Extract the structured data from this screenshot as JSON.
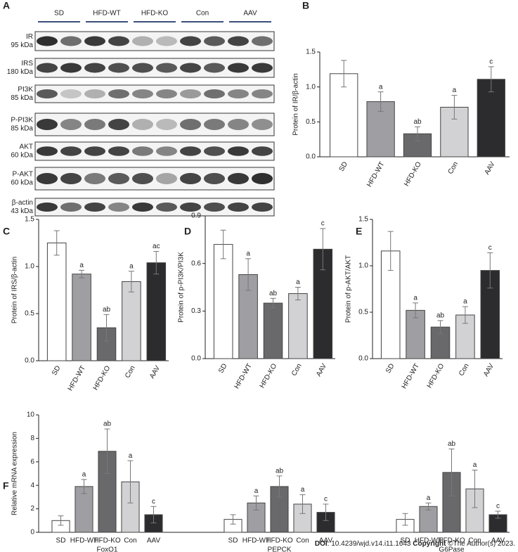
{
  "blot": {
    "label": "A",
    "groups": [
      "SD",
      "HFD-WT",
      "HFD-KO",
      "Con",
      "AAV"
    ],
    "rows": [
      {
        "protein": "IR",
        "size": "95 kDa"
      },
      {
        "protein": "IRS",
        "size": "180 kDa"
      },
      {
        "protein": "PI3K",
        "size": "85 kDa"
      },
      {
        "protein": "P-PI3K",
        "size": "85 kDa"
      },
      {
        "protein": "AKT",
        "size": "60 kDa"
      },
      {
        "protein": "P-AKT",
        "size": "60 kDa"
      },
      {
        "protein": "β-actin",
        "size": "43 kDa"
      }
    ]
  },
  "chart_data": [
    {
      "type": "bar",
      "label": "B",
      "y_label": "Protein of IR/β-actin",
      "categories": [
        "SD",
        "HFD-WT",
        "HFD-KO",
        "Con",
        "AAV"
      ],
      "values": [
        1.19,
        0.79,
        0.33,
        0.71,
        1.11
      ],
      "errors": [
        0.19,
        0.14,
        0.1,
        0.17,
        0.18
      ],
      "annotations": [
        null,
        "a",
        "ab",
        "a",
        "c"
      ],
      "colors": [
        "#ffffff",
        "#9f9fa3",
        "#69696c",
        "#d2d2d4",
        "#2c2c2e"
      ],
      "ylim": [
        0,
        1.5
      ],
      "yticks": [
        {
          "value": 0,
          "label": "0.0"
        },
        {
          "value": 0.5,
          "label": "0.5"
        },
        {
          "value": 1,
          "label": "1.0"
        },
        {
          "value": 1.5,
          "label": "1.5"
        }
      ]
    },
    {
      "type": "bar",
      "label": "C",
      "y_label": "Protein of IRS/β-actin",
      "categories": [
        "SD",
        "HFD-WT",
        "HFD-KO",
        "Con",
        "AAV"
      ],
      "values": [
        1.25,
        0.92,
        0.35,
        0.84,
        1.04
      ],
      "errors": [
        0.13,
        0.04,
        0.14,
        0.11,
        0.12
      ],
      "annotations": [
        null,
        "a",
        "ab",
        "a",
        "ac"
      ],
      "colors": [
        "#ffffff",
        "#9f9fa3",
        "#69696c",
        "#d2d2d4",
        "#2c2c2e"
      ],
      "ylim": [
        0,
        1.5
      ],
      "yticks": [
        {
          "value": 0,
          "label": "0.0"
        },
        {
          "value": 0.5,
          "label": "0.5"
        },
        {
          "value": 1,
          "label": "1.0"
        },
        {
          "value": 1.5,
          "label": "1.5"
        }
      ]
    },
    {
      "type": "bar",
      "label": "D",
      "y_label": "Protein of p-PI3K/PI3K",
      "categories": [
        "SD",
        "HFD-WT",
        "HFD-KO",
        "Con",
        "AAV"
      ],
      "values": [
        0.72,
        0.53,
        0.35,
        0.41,
        0.69
      ],
      "errors": [
        0.09,
        0.1,
        0.03,
        0.04,
        0.13
      ],
      "annotations": [
        null,
        "a",
        "ab",
        "a",
        "c"
      ],
      "colors": [
        "#ffffff",
        "#9f9fa3",
        "#69696c",
        "#d2d2d4",
        "#2c2c2e"
      ],
      "ylim": [
        0,
        0.9
      ],
      "yticks": [
        {
          "value": 0,
          "label": "0.0"
        },
        0.3,
        0.6,
        0.9
      ]
    },
    {
      "type": "bar",
      "label": "E",
      "y_label": "Protein of p-AKT/AKT",
      "categories": [
        "SD",
        "HFD-WT",
        "HFD-KO",
        "Con",
        "AAV"
      ],
      "values": [
        1.16,
        0.52,
        0.34,
        0.47,
        0.95
      ],
      "errors": [
        0.21,
        0.08,
        0.07,
        0.09,
        0.19
      ],
      "annotations": [
        null,
        "a",
        "ab",
        "a",
        "c"
      ],
      "colors": [
        "#ffffff",
        "#9f9fa3",
        "#69696c",
        "#d2d2d4",
        "#2c2c2e"
      ],
      "ylim": [
        0,
        1.5
      ],
      "yticks": [
        {
          "value": 0,
          "label": "0.0"
        },
        {
          "value": 0.5,
          "label": "0.5"
        },
        {
          "value": 1,
          "label": "1.0"
        },
        {
          "value": 1.5,
          "label": "1.5"
        }
      ]
    },
    {
      "type": "grouped_bar",
      "label": "F",
      "y_label": "Relative mRNA expression",
      "categories": [
        "FoxO1",
        "PEPCK",
        "G6Pase"
      ],
      "series": [
        {
          "name": "SD",
          "color": "#ffffff",
          "values": [
            1.0,
            1.1,
            1.1
          ],
          "errors": [
            0.4,
            0.4,
            0.5
          ],
          "annotations": [
            null,
            null,
            null
          ]
        },
        {
          "name": "HFD-WT",
          "color": "#9f9fa3",
          "values": [
            3.9,
            2.5,
            2.2
          ],
          "errors": [
            0.6,
            0.6,
            0.3
          ],
          "annotations": [
            "a",
            "a",
            "a"
          ]
        },
        {
          "name": "HFD-KO",
          "color": "#69696c",
          "values": [
            6.9,
            3.9,
            5.1
          ],
          "errors": [
            1.9,
            0.9,
            2.0
          ],
          "annotations": [
            "ab",
            "ab",
            "ab"
          ]
        },
        {
          "name": "Con",
          "color": "#d2d2d4",
          "values": [
            4.3,
            2.4,
            3.7
          ],
          "errors": [
            1.8,
            0.8,
            1.6
          ],
          "annotations": [
            "a",
            "a",
            "a"
          ]
        },
        {
          "name": "AAV",
          "color": "#2c2c2e",
          "values": [
            1.5,
            1.7,
            1.5
          ],
          "errors": [
            0.7,
            0.7,
            0.3
          ],
          "annotations": [
            "c",
            "c",
            "c"
          ]
        }
      ],
      "ylim": [
        0,
        10
      ],
      "yticks": [
        0,
        2,
        4,
        6,
        8,
        10
      ]
    }
  ],
  "footer": {
    "doi_key": "DOI",
    "doi": ": 10.4239/wjd.v14.i11.1643 ",
    "copyright_key": "Copyright",
    "copyright": " ©The Author(s) 2023."
  }
}
